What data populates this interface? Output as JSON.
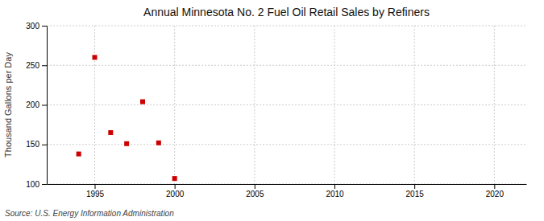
{
  "chart_data": {
    "type": "scatter",
    "title": "Annual Minnesota No. 2 Fuel Oil Retail Sales by Refiners",
    "ylabel": "Thousand Gallons per Day",
    "annotations": [
      "Source: U.S. Energy Information Administration"
    ],
    "x": [
      1994,
      1995,
      1996,
      1997,
      1998,
      1999,
      2000
    ],
    "values": [
      138,
      260,
      165,
      151,
      204,
      152,
      107
    ],
    "color": "#cc0000",
    "marker": "square",
    "xlim": [
      1992,
      2022
    ],
    "ylim": [
      100,
      300
    ],
    "xticks": [
      1995,
      2000,
      2005,
      2010,
      2015,
      2020
    ],
    "yticks": [
      100,
      150,
      200,
      250,
      300
    ],
    "grid": true
  }
}
